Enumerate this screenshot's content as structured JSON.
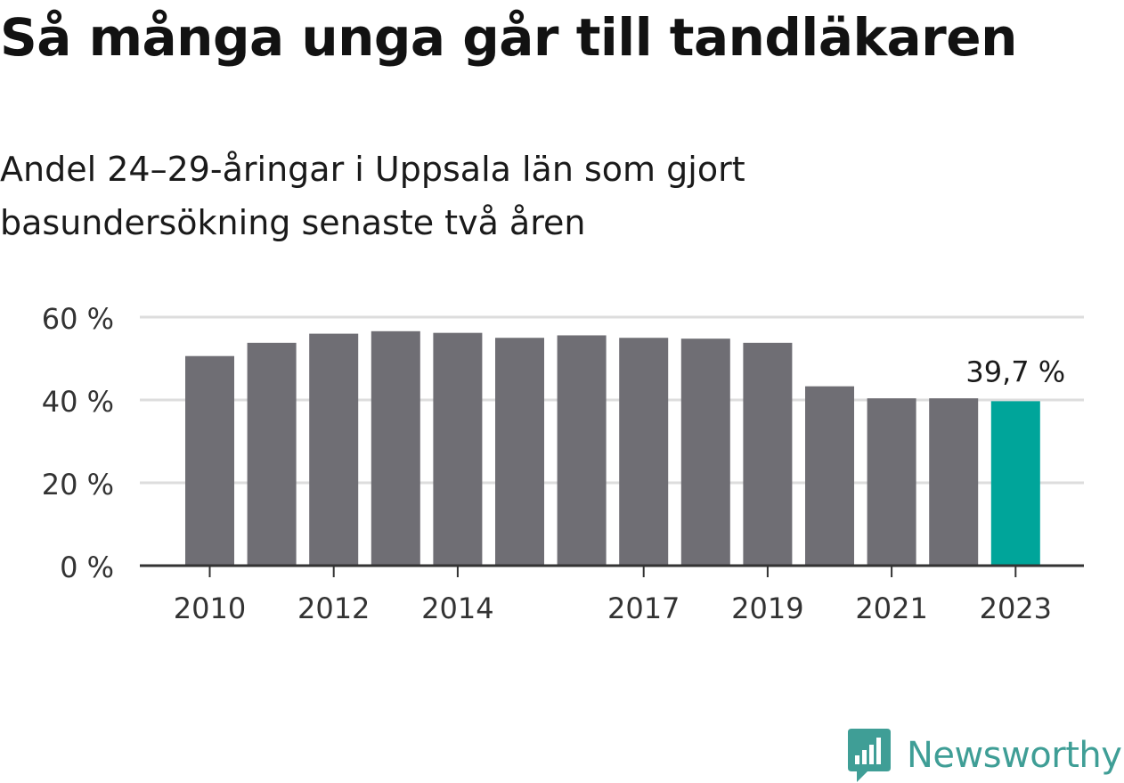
{
  "title": "Så många unga går till tandläkaren",
  "subtitle": "Andel 24–29-åringar i Uppsala län som gjort basundersökning senaste två åren",
  "brand": {
    "name": "Newsworthy",
    "icon": "newsworthy-logo-icon",
    "color": "#3f9e96"
  },
  "colors": {
    "bar": "#6f6e74",
    "highlight": "#00a59a",
    "grid": "#dddddd",
    "axis": "#333333",
    "text": "#333333"
  },
  "chart_data": {
    "type": "bar",
    "x": [
      2010,
      2011,
      2012,
      2013,
      2014,
      2015,
      2016,
      2017,
      2018,
      2019,
      2020,
      2021,
      2022,
      2023
    ],
    "values": [
      50.6,
      53.8,
      56.0,
      56.6,
      56.2,
      55.0,
      55.6,
      55.0,
      54.8,
      53.8,
      43.3,
      40.4,
      40.4,
      39.7
    ],
    "xticks": [
      "2010",
      "2012",
      "2014",
      "2017",
      "2019",
      "2021",
      "2023"
    ],
    "yticks": [
      "0 %",
      "20 %",
      "40 %",
      "60 %"
    ],
    "ylim": [
      0,
      60
    ],
    "highlight_index": 13,
    "annotation": "39,7 %",
    "grid": true
  }
}
